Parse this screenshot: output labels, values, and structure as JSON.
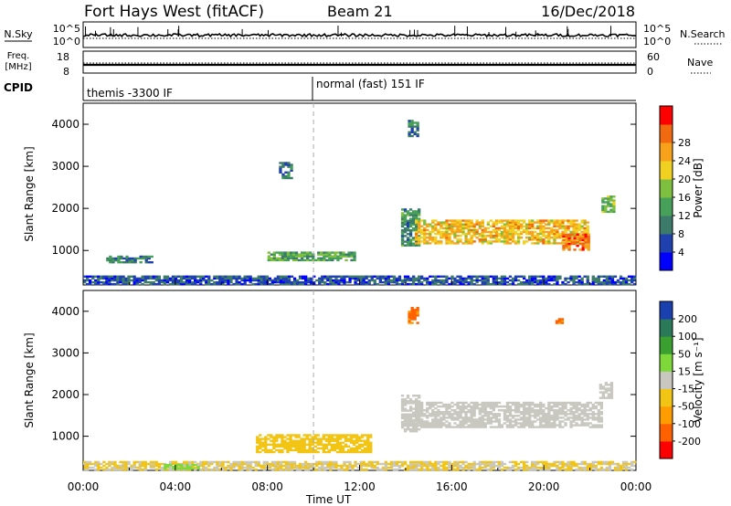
{
  "header": {
    "title": "Fort Hays West (fitACF)",
    "beam": "Beam 21",
    "date": "16/Dec/2018"
  },
  "panels": {
    "nsky": {
      "label": "N.Sky",
      "tick_top": "10^5",
      "tick_bottom": "10^0",
      "right_tick_top": "10^5",
      "right_tick_bottom": "10^0",
      "right_label": "N.Search"
    },
    "freq": {
      "label_line1": "Freq.",
      "label_line2": "[MHz]",
      "tick_top": "18",
      "tick_bottom": "8",
      "right_tick_top": "60",
      "right_tick_bottom": "0",
      "right_label": "Nave"
    },
    "cpid": {
      "label": "CPID",
      "segments": [
        {
          "text": "themis -3300 IF"
        },
        {
          "text": "normal (fast) 151 IF"
        }
      ]
    }
  },
  "colors": {
    "power": [
      "#0000ff",
      "#2040b0",
      "#3c7a6a",
      "#47a05a",
      "#7fbf3f",
      "#f0d020",
      "#f7a21a",
      "#f26a10",
      "#ff0000"
    ],
    "velocity": [
      "#ff0000",
      "#ff6000",
      "#ff9c00",
      "#f2c414",
      "#c8c8c0",
      "#7fd83a",
      "#3aa030",
      "#2a7a5a",
      "#1a40b0"
    ]
  },
  "chart_data": [
    {
      "type": "heatmap",
      "title": "",
      "xlabel": "Time UT",
      "ylabel": "Slant Range [km]",
      "x_ticks": [
        "00:00",
        "04:00",
        "08:00",
        "12:00",
        "16:00",
        "20:00",
        "00:00"
      ],
      "y_ticks": [
        "1000",
        "2000",
        "3000",
        "4000"
      ],
      "ylim": [
        180,
        4500
      ],
      "colorbar": {
        "label": "Power [dB]",
        "ticks": [
          "4",
          "8",
          "12",
          "16",
          "20",
          "24",
          "28"
        ],
        "range": [
          0,
          30
        ]
      },
      "regions": [
        {
          "t": [
            8.0,
            11.8
          ],
          "range": [
            750,
            950
          ],
          "value": 12
        },
        {
          "t": [
            1.0,
            3.0
          ],
          "range": [
            700,
            850
          ],
          "value": 9
        },
        {
          "t": [
            13.8,
            14.6
          ],
          "range": [
            1100,
            2000
          ],
          "value": 10
        },
        {
          "t": [
            14.4,
            21.9
          ],
          "range": [
            1150,
            1700
          ],
          "value": 20
        },
        {
          "t": [
            20.8,
            21.9
          ],
          "range": [
            1000,
            1400
          ],
          "value": 24
        },
        {
          "t": [
            22.5,
            23.0
          ],
          "range": [
            1900,
            2300
          ],
          "value": 14
        },
        {
          "t": [
            0.0,
            24.0
          ],
          "range": [
            180,
            380
          ],
          "value": 6
        },
        {
          "t": [
            8.5,
            9.0
          ],
          "range": [
            2700,
            3100
          ],
          "value": 8
        },
        {
          "t": [
            14.1,
            14.5
          ],
          "range": [
            3700,
            4100
          ],
          "value": 8
        }
      ]
    },
    {
      "type": "heatmap",
      "title": "",
      "xlabel": "Time UT",
      "ylabel": "Slant Range [km]",
      "x_ticks": [
        "00:00",
        "04:00",
        "08:00",
        "12:00",
        "16:00",
        "20:00",
        "00:00"
      ],
      "y_ticks": [
        "1000",
        "2000",
        "3000",
        "4000"
      ],
      "ylim": [
        180,
        4500
      ],
      "colorbar": {
        "label": "Velocity [m s⁻¹]",
        "ticks": [
          "-200",
          "-100",
          "-50",
          "-15",
          "15",
          "50",
          "100",
          "200"
        ],
        "range": [
          -250,
          250
        ]
      },
      "regions": [
        {
          "t": [
            7.5,
            12.5
          ],
          "range": [
            600,
            1050
          ],
          "value": -60
        },
        {
          "t": [
            13.8,
            14.6
          ],
          "range": [
            1100,
            2000
          ],
          "value": 0
        },
        {
          "t": [
            14.4,
            22.5
          ],
          "range": [
            1200,
            1800
          ],
          "value": 0
        },
        {
          "t": [
            22.4,
            23.0
          ],
          "range": [
            1900,
            2300
          ],
          "value": 0
        },
        {
          "t": [
            0.0,
            24.0
          ],
          "range": [
            180,
            380
          ],
          "value": -30
        },
        {
          "t": [
            3.5,
            5.0
          ],
          "range": [
            200,
            320
          ],
          "value": 40
        },
        {
          "t": [
            14.1,
            14.5
          ],
          "range": [
            3700,
            4100
          ],
          "value": -150
        },
        {
          "t": [
            20.5,
            20.8
          ],
          "range": [
            3700,
            3800
          ],
          "value": -150
        }
      ]
    }
  ]
}
